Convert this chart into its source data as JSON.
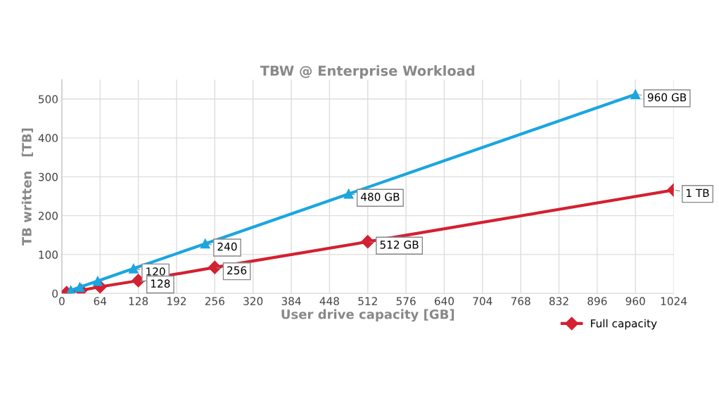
{
  "chart_data": {
    "type": "line",
    "title": "TBW @ Enterprise Workload",
    "xlabel": "User drive capacity [GB]",
    "ylabel": "TB written   [TB]",
    "series": [
      {
        "name": "Full capacity",
        "color": "#d42030",
        "marker": "diamond",
        "x": [
          8,
          32,
          64,
          128,
          256,
          512,
          1024
        ],
        "values": [
          2,
          8,
          17,
          33,
          67,
          133,
          266
        ]
      },
      {
        "color": "#1aa6e0",
        "marker": "triangle",
        "x": [
          15,
          30,
          60,
          120,
          240,
          480,
          960
        ],
        "values": [
          8,
          16,
          32,
          64,
          128,
          256,
          512
        ]
      }
    ],
    "xlim": [
      0,
      1024
    ],
    "xticks": [
      0,
      64,
      128,
      192,
      256,
      320,
      384,
      448,
      512,
      576,
      640,
      704,
      768,
      832,
      896,
      960,
      1024
    ],
    "ylim": [
      0,
      550
    ],
    "yticks": [
      0,
      100,
      200,
      300,
      400,
      500
    ],
    "grid": true,
    "legend": "bottom right",
    "line_style": "solid",
    "annotations": [
      {
        "text": "120",
        "x": 120,
        "y": 64
      },
      {
        "text": "240",
        "x": 240,
        "y": 128
      },
      {
        "text": "480 GB",
        "x": 480,
        "y": 256
      },
      {
        "text": "960 GB",
        "x": 960,
        "y": 512
      },
      {
        "text": "128",
        "x": 128,
        "y": 33
      },
      {
        "text": "256",
        "x": 256,
        "y": 67
      },
      {
        "text": "512 GB",
        "x": 512,
        "y": 133
      },
      {
        "text": "1 TB",
        "x": 1024,
        "y": 266
      }
    ]
  }
}
